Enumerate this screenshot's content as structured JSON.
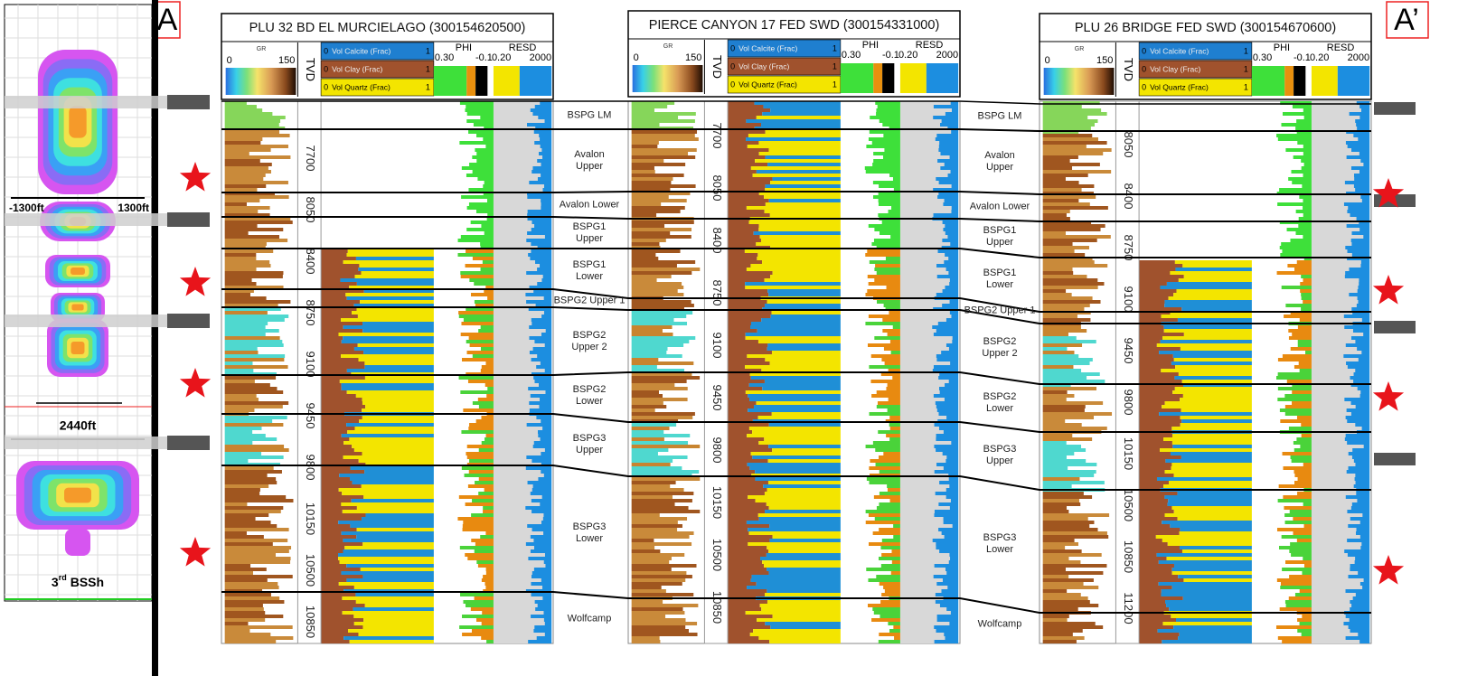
{
  "section": {
    "start": "A",
    "end": "A’"
  },
  "frac_model": {
    "left_extent": "-1300ft",
    "right_extent": "1300ft",
    "length": "2440ft",
    "zone_number": "3",
    "zone_suffix": "rd",
    "zone_name": "BSSh"
  },
  "track_header": {
    "gr": "GR",
    "gr_min": 0,
    "gr_max": 150,
    "tvd": "TVD",
    "vol_min": 0,
    "vol_max": 1,
    "vol_calcite": "Vol Calcite (Frac)",
    "vol_clay": "Vol Clay (Frac)",
    "vol_quartz": "Vol Quartz (Frac)",
    "phi": "PHI",
    "phi_left": "0.30",
    "phi_right": -0.1,
    "resd": "RESD",
    "resd_min": "0.20",
    "resd_max": 2000
  },
  "wells": [
    {
      "title": "PLU 32 BD EL MURCIELAGO (300154620500)",
      "depths": [
        7700,
        8050,
        8400,
        8750,
        9100,
        9450,
        9800,
        10150,
        10500,
        10850
      ]
    },
    {
      "title": "PIERCE CANYON 17 FED SWD (300154331000)",
      "depths": [
        7700,
        8050,
        8400,
        8750,
        9100,
        9450,
        9800,
        10150,
        10500,
        10850
      ]
    },
    {
      "title": "PLU 26 BRIDGE FED SWD (300154670600)",
      "depths": [
        8050,
        8400,
        8750,
        9100,
        9450,
        9800,
        10150,
        10500,
        10850,
        11200
      ]
    }
  ],
  "zones": [
    "BSPG LM",
    "Avalon Upper",
    "Avalon Lower",
    "BSPG1 Upper",
    "BSPG1 Lower",
    "BSPG2 Upper 1",
    "BSPG2 Upper 2",
    "BSPG2 Lower",
    "BSPG3 Upper",
    "BSPG3 Lower",
    "Wolfcamp"
  ]
}
